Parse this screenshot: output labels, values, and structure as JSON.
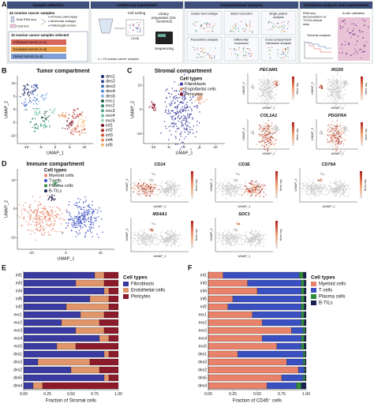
{
  "panel_letters": [
    "A",
    "B",
    "C",
    "D",
    "E",
    "F"
  ],
  "sample_selection": {
    "title": "Sample selection",
    "line1": "42 ovarian cancer samples",
    "bulk": "Bulk RNA seq",
    "ihc": "CD8 IHC",
    "criteria": [
      "Immune phenotype",
      "Molecular subtype",
      "Pathologist review"
    ],
    "line2": "15 ovarian cancer samples selected",
    "groups": [
      "Infiltrated tumors (n=5)",
      "Excluded tumors (n=5)",
      "Desert tumors (n=5)"
    ]
  },
  "scrnaseq": {
    "title": "scRNAseq experiment",
    "sorting": "Cell sorting",
    "marker": "CD45",
    "n": "n = 15 ovarian cancer samples",
    "library": "Library preparation (10x Genomics)",
    "sequencing": "Sequencing"
  },
  "computational": {
    "title": "Computational analysis",
    "steps": [
      "Cluster and Celltype",
      "Batch correction",
      "Single patient analysis",
      "Pseudotime analysis",
      "Differential expression",
      "Cross-compartment interaction analysis"
    ]
  },
  "validation": {
    "title": "Validation analysis and experiments",
    "steps": [
      "RNA seq deconvolution of TCGA clinical data",
      "In situ validation",
      "Survival analysis"
    ]
  },
  "umaps": [
    {
      "title": "Tumor compartment",
      "xlabel": "UMAP_1",
      "ylabel": "UMAP_2",
      "xlim": [
        -13,
        13
      ],
      "ylim": [
        -13,
        13
      ],
      "xticks": [
        -10,
        -5,
        0,
        5,
        10
      ],
      "yticks": [
        -10,
        -5,
        0,
        5,
        10
      ],
      "groups": [
        {
          "name": "des1",
          "color": "#1b2a6b"
        },
        {
          "name": "des2",
          "color": "#2c4a9a"
        },
        {
          "name": "des3",
          "color": "#3f6fc0"
        },
        {
          "name": "des4",
          "color": "#5b8fd8"
        },
        {
          "name": "des5",
          "color": "#86b3e8"
        },
        {
          "name": "exc1",
          "color": "#1f5f4a"
        },
        {
          "name": "exc2",
          "color": "#2f8a66"
        },
        {
          "name": "exc3",
          "color": "#46a883"
        },
        {
          "name": "exc4",
          "color": "#6cc3a0"
        },
        {
          "name": "exc5",
          "color": "#9bd9bd"
        },
        {
          "name": "inf1",
          "color": "#7a1020"
        },
        {
          "name": "inf2",
          "color": "#b02a2a"
        },
        {
          "name": "inf3",
          "color": "#d4553a"
        },
        {
          "name": "inf4",
          "color": "#e88a4f"
        },
        {
          "name": "inf5",
          "color": "#f2b774"
        }
      ]
    },
    {
      "title": "Stromal compartment",
      "legend_title": "Cell types",
      "xlabel": "UMAP_1",
      "ylabel": "UMAP_2",
      "xlim": [
        -13,
        13
      ],
      "ylim": [
        -14,
        14
      ],
      "xticks": [
        -10,
        -5,
        0,
        5,
        10
      ],
      "yticks": [
        -10,
        0,
        10
      ],
      "groups": [
        {
          "name": "Fibroblasts",
          "color": "#3a3aa0"
        },
        {
          "name": "Endothelial cells",
          "color": "#e0956a"
        },
        {
          "name": "Pericytes",
          "color": "#8b1a2a"
        }
      ]
    },
    {
      "title": "Immune compartment",
      "legend_title": "Cell types",
      "xlabel": "UMAP_1",
      "ylabel": "UMAP_2",
      "xlim": [
        -14,
        14
      ],
      "ylim": [
        -14,
        14
      ],
      "xticks": [
        -10,
        0,
        10
      ],
      "yticks": [
        -10,
        0,
        10
      ],
      "groups": [
        {
          "name": "Myeloid cells",
          "color": "#e8826a"
        },
        {
          "name": "T cells",
          "color": "#3a4fc0"
        },
        {
          "name": "Plasma cells",
          "color": "#2e8b3a"
        },
        {
          "name": "B-TILs",
          "color": "#1a2050"
        }
      ]
    }
  ],
  "feature_plots": {
    "colorbar_label": "Norm. exp.",
    "stromal": [
      "PECAM1",
      "RGS5",
      "COL1A1",
      "PDGFRA"
    ],
    "immune": [
      "CD14",
      "CD3E",
      "CD79A",
      "MS4A1",
      "SDC1"
    ]
  },
  "chart_data": [
    {
      "type": "bar",
      "orientation": "horizontal",
      "stacked": true,
      "xlabel": "Fraction of Stromal cells",
      "legend_title": "Cell types",
      "categories": [
        "inf1",
        "inf3",
        "inf4",
        "inf5",
        "inf2",
        "exc1",
        "exc2",
        "exc3",
        "exc4",
        "exc5",
        "des1",
        "des3",
        "des2",
        "des5",
        "des4"
      ],
      "series": [
        {
          "name": "Fibroblasts",
          "color": "#3a3aa0",
          "values": [
            0.75,
            0.55,
            0.85,
            0.7,
            0.45,
            0.6,
            0.4,
            0.55,
            0.8,
            0.35,
            0.85,
            0.15,
            0.5,
            0.85,
            0.1
          ]
        },
        {
          "name": "Endothelial cells",
          "color": "#e0956a",
          "values": [
            0.1,
            0.3,
            0.05,
            0.2,
            0.45,
            0.25,
            0.4,
            0.3,
            0.1,
            0.2,
            0.05,
            0.55,
            0.3,
            0.05,
            0.1
          ]
        },
        {
          "name": "Pericytes",
          "color": "#8b1a2a",
          "values": [
            0.15,
            0.15,
            0.1,
            0.1,
            0.1,
            0.15,
            0.2,
            0.15,
            0.1,
            0.45,
            0.1,
            0.3,
            0.2,
            0.1,
            0.8
          ]
        }
      ],
      "xlim": [
        0,
        1
      ],
      "xticks": [
        {
          "value": 0,
          "label": "0.00"
        },
        {
          "value": 0.25,
          "label": "0.25"
        },
        {
          "value": 0.5,
          "label": "0.50"
        },
        {
          "value": 0.75,
          "label": "0.75"
        },
        {
          "value": 1,
          "label": "1.00"
        }
      ]
    },
    {
      "type": "bar",
      "orientation": "horizontal",
      "stacked": true,
      "xlabel": "Fraction of CD45⁺ cells",
      "legend_title": "Cell types",
      "categories": [
        "inf1",
        "inf3",
        "inf4",
        "inf5",
        "inf2",
        "exc1",
        "exc2",
        "exc3",
        "exc4",
        "exc5",
        "des1",
        "des3",
        "des2",
        "des5",
        "des4"
      ],
      "series": [
        {
          "name": "Myeloid cells",
          "color": "#e8826a",
          "values": [
            0.15,
            0.4,
            0.5,
            0.25,
            0.2,
            0.45,
            0.55,
            0.85,
            0.55,
            0.7,
            0.3,
            0.8,
            0.92,
            0.75,
            0.6
          ]
        },
        {
          "name": "T cells",
          "color": "#3a4fc0",
          "values": [
            0.78,
            0.55,
            0.45,
            0.7,
            0.75,
            0.5,
            0.4,
            0.12,
            0.4,
            0.25,
            0.67,
            0.17,
            0.06,
            0.22,
            0.3
          ]
        },
        {
          "name": "Plasma cells",
          "color": "#2e8b3a",
          "values": [
            0.04,
            0.03,
            0.03,
            0.03,
            0.03,
            0.03,
            0.03,
            0.02,
            0.03,
            0.03,
            0.02,
            0.02,
            0.01,
            0.02,
            0.05
          ]
        },
        {
          "name": "B-TILs",
          "color": "#1a2050",
          "values": [
            0.03,
            0.02,
            0.02,
            0.02,
            0.02,
            0.02,
            0.02,
            0.01,
            0.02,
            0.02,
            0.01,
            0.01,
            0.01,
            0.01,
            0.05
          ]
        }
      ],
      "xlim": [
        0,
        1
      ],
      "xticks": [
        {
          "value": 0,
          "label": "0.00"
        },
        {
          "value": 0.25,
          "label": "0.25"
        },
        {
          "value": 0.5,
          "label": "0.50"
        },
        {
          "value": 0.75,
          "label": "0.75"
        },
        {
          "value": 1,
          "label": "1.00"
        }
      ]
    }
  ]
}
